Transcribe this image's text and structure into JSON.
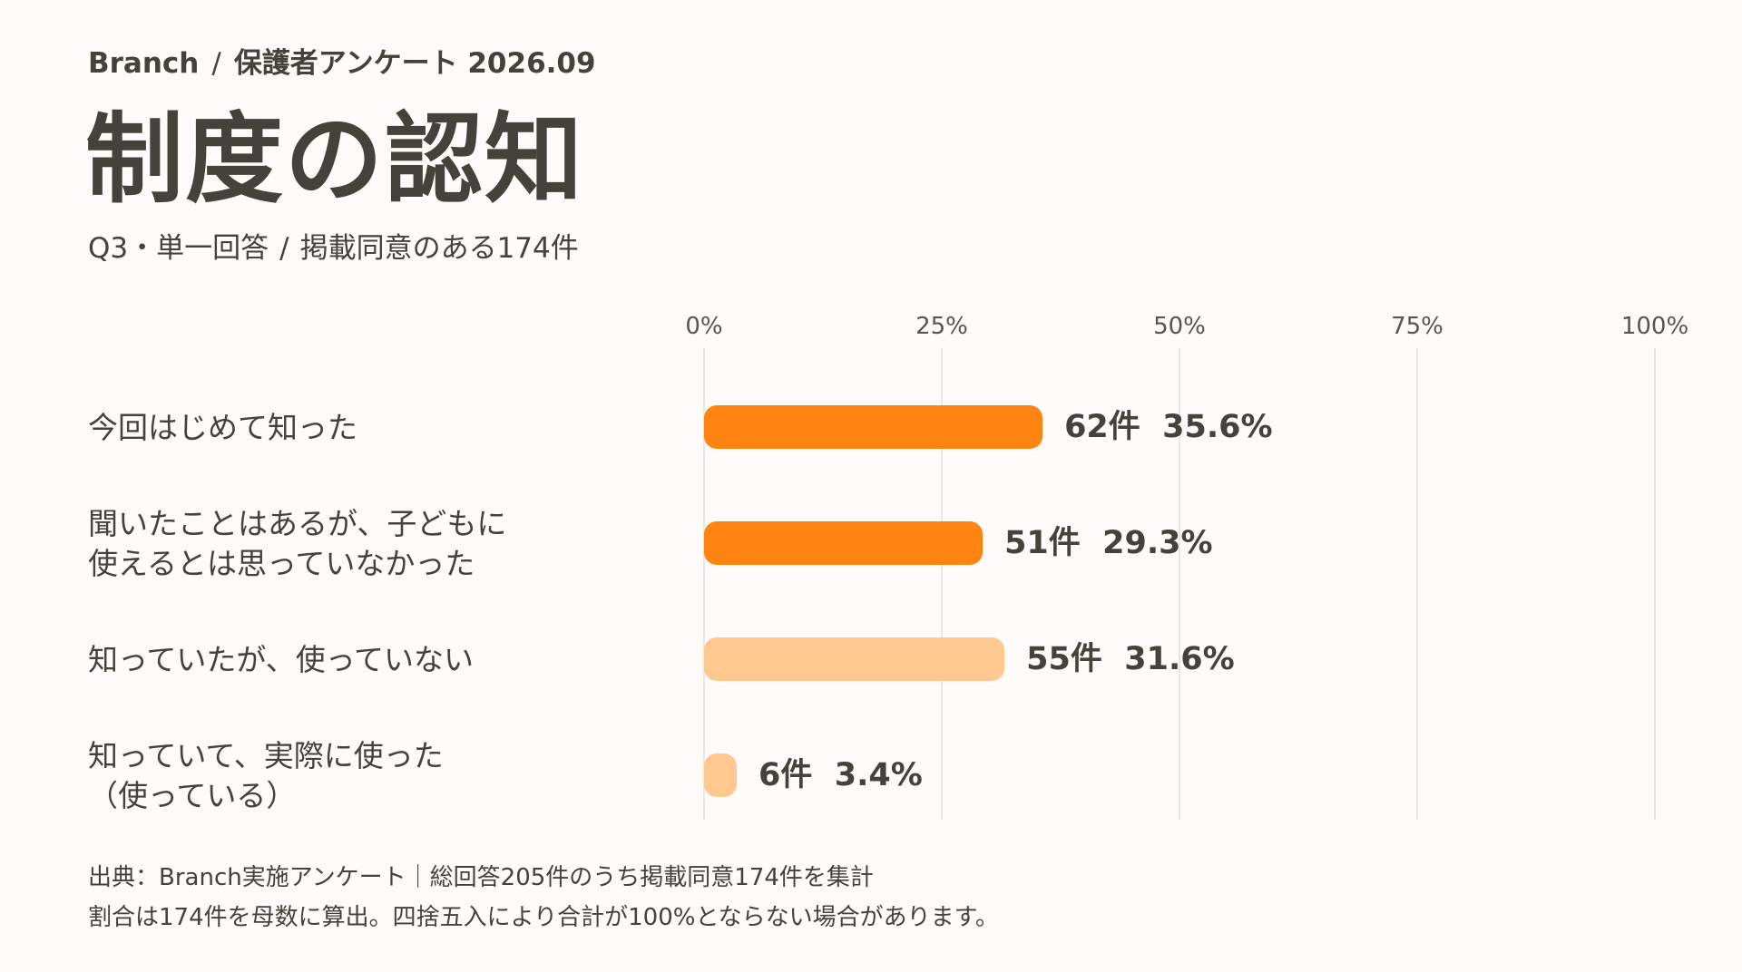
{
  "header": {
    "brand": "Branch",
    "separator": "/",
    "survey": "保護者アンケート 2026.09"
  },
  "title": "制度の認知",
  "subtitle": {
    "question": "Q3・単一回答",
    "separator": "/",
    "sample": "掲載同意のある174件"
  },
  "chart_data": {
    "type": "bar",
    "orientation": "horizontal",
    "title": "制度の認知",
    "xlabel": "",
    "ylabel": "",
    "xlim": [
      0,
      100
    ],
    "x_ticks": [
      "0%",
      "25%",
      "50%",
      "75%",
      "100%"
    ],
    "grid": true,
    "categories": [
      [
        "今回はじめて知った"
      ],
      [
        "聞いたことはあるが、子どもに",
        "使えるとは思っていなかった"
      ],
      [
        "知っていたが、使っていない"
      ],
      [
        "知っていて、実際に使った",
        "（使っている）"
      ]
    ],
    "counts": [
      62,
      51,
      55,
      6
    ],
    "values": [
      35.6,
      29.3,
      31.6,
      3.4
    ],
    "value_labels": [
      "62件  35.6%",
      "51件  29.3%",
      "55件  31.6%",
      "6件  3.4%"
    ],
    "colors": [
      "#ff8412",
      "#ff8412",
      "#ffc88e",
      "#ffc88e"
    ]
  },
  "footnote": {
    "line1": "出典：Branch実施アンケート｜総回答205件のうち掲載同意174件を集計",
    "line2": "割合は174件を母数に算出。四捨五入により合計が100%とならない場合があります。"
  },
  "colors": {
    "text": "#45413b",
    "background": "#fdfcfa",
    "grid": "#e3e0dc",
    "accent_strong": "#ff8412",
    "accent_light": "#ffc88e"
  }
}
